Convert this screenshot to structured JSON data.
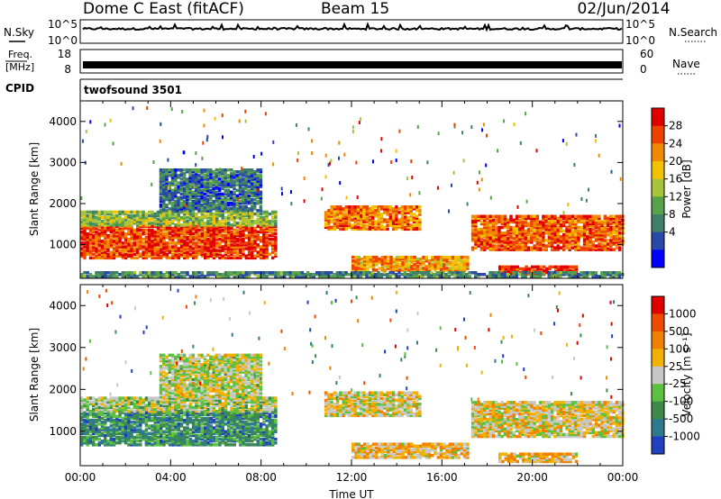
{
  "header": {
    "station": "Dome C East (fitACF)",
    "beam": "Beam 15",
    "date": "02/Jun/2014"
  },
  "top_panels": {
    "nsky_label": "N.Sky",
    "nsky_ticks": [
      "10^5",
      "10^0"
    ],
    "nsearch_label": "N.Search",
    "nsearch_ticks": [
      "10^5",
      "10^0"
    ],
    "freq_label_1": "Freq.",
    "freq_label_2": "[MHz]",
    "freq_ticks": [
      "18",
      "8"
    ],
    "nave_label": "Nave",
    "nave_ticks": [
      "60",
      "0"
    ],
    "cpid_label": "CPID",
    "cpid_value": "twofsound 3501"
  },
  "chart_data": [
    {
      "type": "heatmap",
      "name": "power",
      "xlabel": "",
      "ylabel": "Slant Range [km]",
      "xlim": [
        0,
        24
      ],
      "ylim": [
        180,
        4500
      ],
      "yticks": [
        "1000",
        "2000",
        "3000",
        "4000"
      ],
      "colorbar_label": "Power [dB]",
      "colorbar_ticks": [
        "28",
        "24",
        "20",
        "16",
        "12",
        "8",
        "4"
      ],
      "colorbar_colors": [
        "#0000ff",
        "#2849a8",
        "#3f7f6a",
        "#57a24a",
        "#a6c43c",
        "#f2c200",
        "#f28a00",
        "#ee4200",
        "#e00000"
      ],
      "regions": [
        {
          "t0": 0.0,
          "t1": 8.7,
          "r0": 650,
          "r1": 1450,
          "level": 0.85
        },
        {
          "t0": 0.0,
          "t1": 8.7,
          "r0": 1450,
          "r1": 1800,
          "level": 0.45
        },
        {
          "t0": 3.5,
          "t1": 8.0,
          "r0": 1800,
          "r1": 2800,
          "level": 0.25
        },
        {
          "t0": 10.8,
          "t1": 15.0,
          "r0": 1350,
          "r1": 1900,
          "level": 0.75
        },
        {
          "t0": 12.0,
          "t1": 17.2,
          "r0": 350,
          "r1": 700,
          "level": 0.7
        },
        {
          "t0": 17.3,
          "t1": 24.0,
          "r0": 850,
          "r1": 1700,
          "level": 0.8
        },
        {
          "t0": 18.5,
          "t1": 22.0,
          "r0": 250,
          "r1": 450,
          "level": 0.9
        },
        {
          "t0": 0.0,
          "t1": 24.0,
          "r0": 200,
          "r1": 300,
          "level": 0.3
        }
      ]
    },
    {
      "type": "heatmap",
      "name": "velocity",
      "xlabel": "Time UT",
      "ylabel": "Slant Range [km]",
      "xlim": [
        0,
        24
      ],
      "ylim": [
        180,
        4500
      ],
      "xticks": [
        "00:00",
        "04:00",
        "08:00",
        "12:00",
        "16:00",
        "20:00",
        "00:00"
      ],
      "yticks": [
        "1000",
        "2000",
        "3000",
        "4000"
      ],
      "colorbar_label": "Velocity [m s⁻¹]",
      "colorbar_ticks": [
        "1000",
        "500",
        "100",
        "25",
        "-25",
        "-100",
        "-500",
        "-1000"
      ],
      "colorbar_colors": [
        "#2040c0",
        "#2e7a8c",
        "#3d8a4a",
        "#5cc040",
        "#c8c8c8",
        "#f2b000",
        "#f28000",
        "#ee4a00",
        "#e00000"
      ],
      "regions": [
        {
          "t0": 0.0,
          "t1": 8.7,
          "r0": 650,
          "r1": 1450,
          "level": 0.25
        },
        {
          "t0": 0.0,
          "t1": 8.7,
          "r0": 1450,
          "r1": 1800,
          "level": 0.45
        },
        {
          "t0": 3.5,
          "t1": 8.0,
          "r0": 1800,
          "r1": 2800,
          "level": 0.5
        },
        {
          "t0": 10.8,
          "t1": 15.0,
          "r0": 1350,
          "r1": 1900,
          "level": 0.55
        },
        {
          "t0": 12.0,
          "t1": 17.2,
          "r0": 350,
          "r1": 700,
          "level": 0.6
        },
        {
          "t0": 17.3,
          "t1": 24.0,
          "r0": 850,
          "r1": 1700,
          "level": 0.55
        },
        {
          "t0": 18.5,
          "t1": 22.0,
          "r0": 250,
          "r1": 450,
          "level": 0.6
        }
      ]
    }
  ]
}
